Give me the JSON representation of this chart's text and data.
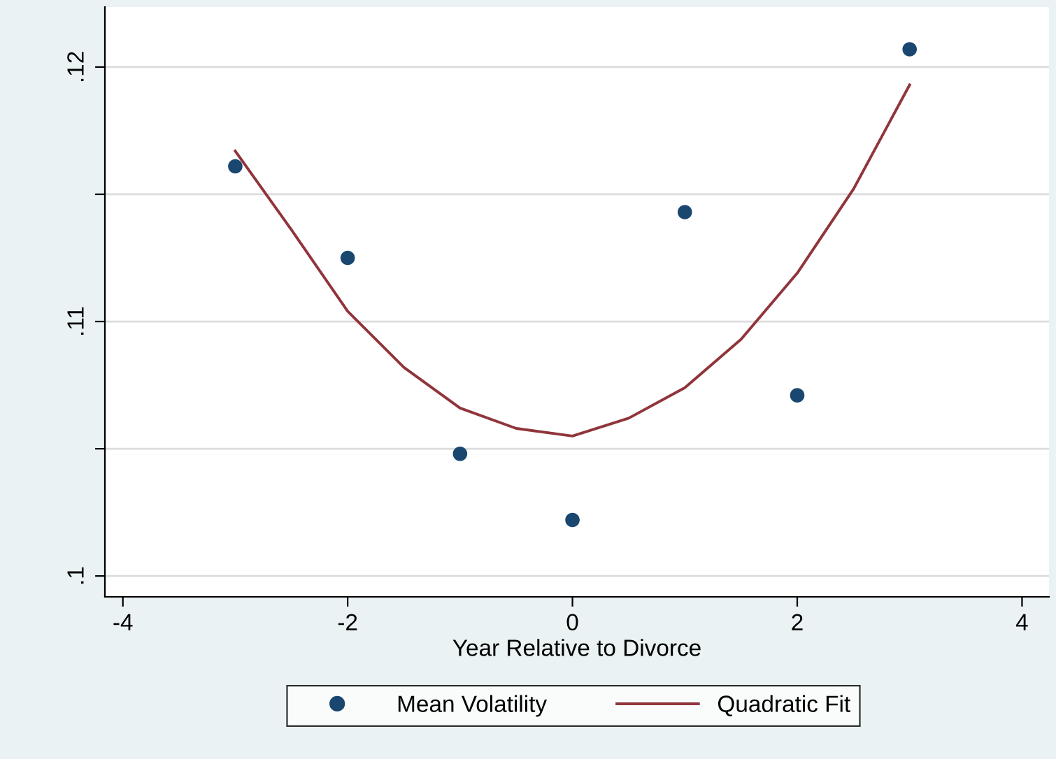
{
  "chart_data": {
    "type": "scatter",
    "xlabel": "Year Relative to Divorce",
    "xlim": [
      -4.16,
      4.24
    ],
    "xticks": [
      -4,
      -2,
      0,
      2,
      4
    ],
    "ylim": [
      0.09918,
      0.12236
    ],
    "yticks": [
      {
        "value": 0.1,
        "label": ".1"
      },
      {
        "value": 0.105,
        "label": null
      },
      {
        "value": 0.11,
        "label": ".11"
      },
      {
        "value": 0.115,
        "label": null
      },
      {
        "value": 0.12,
        "label": ".12"
      }
    ],
    "grid": "y",
    "legend": "bottom",
    "series": [
      {
        "name": "Mean Volatility",
        "marker": "circle",
        "color": "#1a476f",
        "x": [
          -3,
          -2,
          -1,
          0,
          1,
          2,
          3
        ],
        "values": [
          0.1161,
          0.1125,
          0.1048,
          0.1022,
          0.1143,
          0.1071,
          0.1207
        ]
      },
      {
        "name": "Quadratic Fit",
        "type": "line",
        "color": "#90353b",
        "x": [
          -3,
          -2.5,
          -2,
          -1.5,
          -1,
          -0.5,
          0,
          0.5,
          1,
          1.5,
          2,
          2.5,
          3
        ],
        "values": [
          0.1167,
          0.1136,
          0.1104,
          0.1082,
          0.1066,
          0.1058,
          0.1055,
          0.1062,
          0.1074,
          0.1093,
          0.1119,
          0.1152,
          0.1193
        ]
      }
    ]
  }
}
